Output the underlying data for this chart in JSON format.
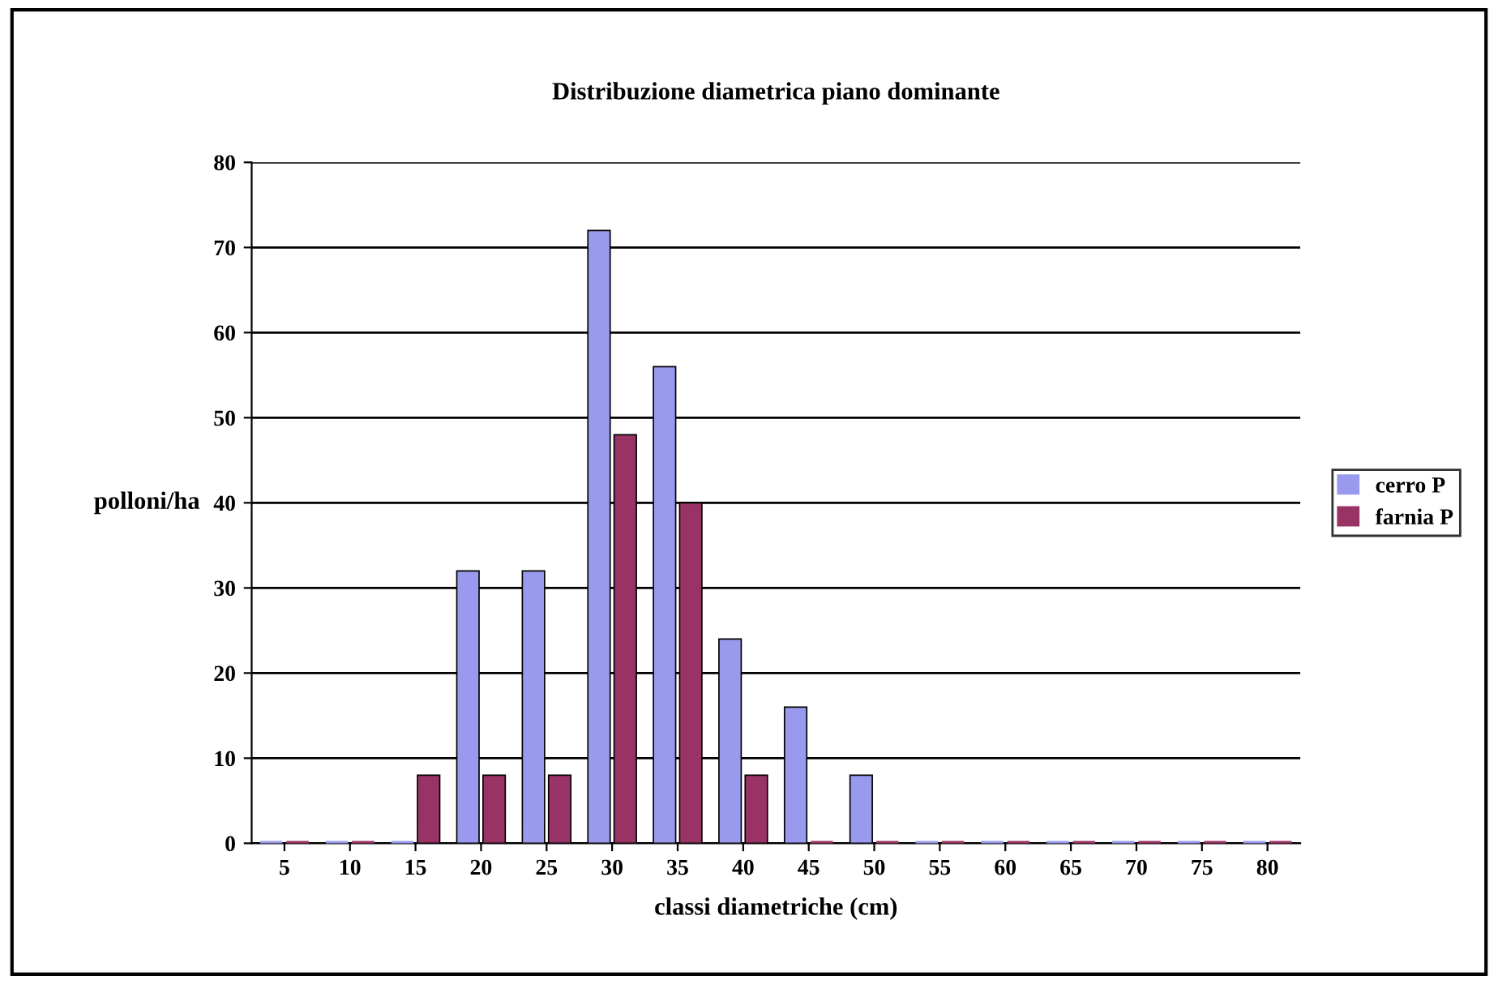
{
  "chart_data": {
    "type": "bar",
    "title": "Distribuzione diametrica piano dominante",
    "xlabel": "classi diametriche (cm)",
    "ylabel": "polloni/ha",
    "categories": [
      "5",
      "10",
      "15",
      "20",
      "25",
      "30",
      "35",
      "40",
      "45",
      "50",
      "55",
      "60",
      "65",
      "70",
      "75",
      "80"
    ],
    "series": [
      {
        "name": "cerro P",
        "color": "#9999ee",
        "values": [
          0,
          0,
          0,
          32,
          32,
          72,
          56,
          24,
          16,
          8,
          0,
          0,
          0,
          0,
          0,
          0
        ]
      },
      {
        "name": "farnia P",
        "color": "#993366",
        "values": [
          0,
          0,
          8,
          8,
          8,
          48,
          40,
          8,
          0,
          0,
          0,
          0,
          0,
          0,
          0,
          0
        ]
      }
    ],
    "ylim": [
      0,
      80
    ],
    "yticks": [
      0,
      10,
      20,
      30,
      40,
      50,
      60,
      70,
      80
    ],
    "grid": "y",
    "legend": "right"
  }
}
